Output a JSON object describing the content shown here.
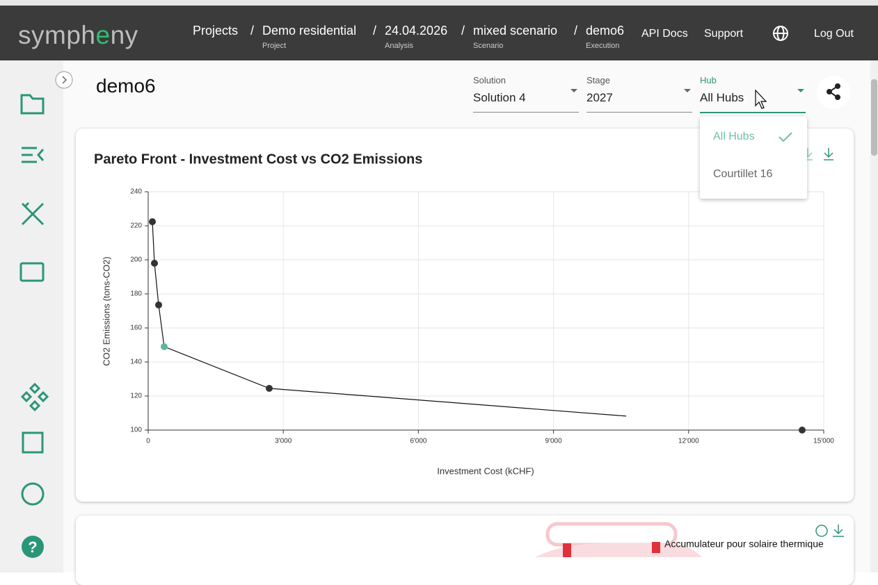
{
  "header": {
    "logo": [
      "symph",
      "e",
      "ny"
    ],
    "breadcrumbs": [
      {
        "label": "Projects"
      },
      {
        "label": "Demo residential",
        "sub": "Project"
      },
      {
        "label": "24.04.2026",
        "sub": "Analysis"
      },
      {
        "label": "mixed scenario",
        "sub": "Scenario"
      },
      {
        "label": "demo6",
        "sub": "Execution"
      }
    ],
    "separator": "/",
    "nav": [
      "API Docs",
      "Support",
      "Log Out"
    ]
  },
  "page": {
    "title": "demo6",
    "selects": [
      {
        "label": "Solution",
        "value": "Solution 4"
      },
      {
        "label": "Stage",
        "value": "2027"
      },
      {
        "label": "Hub",
        "value": "All Hubs"
      }
    ],
    "hub_menu": [
      "All Hubs",
      "Courtillet 16"
    ]
  },
  "chart_data": {
    "type": "line",
    "title": "Pareto Front - Investment Cost vs CO2 Emissions",
    "x_label": "Investment Cost (kCHF)",
    "y_label": "CO2 Emissions (tons-CO2)",
    "line": {
      "x": [
        93,
        139,
        232,
        355,
        2688,
        10613
      ],
      "y": [
        222.4,
        198,
        173.5,
        149,
        124.5,
        108.2
      ],
      "color": "#111111"
    },
    "points": {
      "x": [
        93,
        139,
        232,
        355,
        2688,
        14521
      ],
      "y": [
        222.4,
        198,
        173.5,
        149,
        124.5,
        100
      ],
      "colors": [
        "#333333",
        "#333333",
        "#333333",
        "#5cb89b",
        "#333333",
        "#333333"
      ]
    },
    "xlim": [
      0,
      15000
    ],
    "ylim": [
      100,
      240
    ],
    "xticks": [
      0,
      {
        "value": 3000,
        "label": "3'000"
      },
      {
        "value": 6000,
        "label": "6'000"
      },
      {
        "value": 9000,
        "label": "9'000"
      },
      {
        "value": 12000,
        "label": "12'000"
      },
      {
        "value": 15000,
        "label": "15'000"
      }
    ],
    "yticks": [
      100,
      120,
      140,
      160,
      180,
      200,
      220,
      240
    ],
    "grid": true
  },
  "second_card": {
    "legend": "Accumulateur pour solaire thermique"
  }
}
